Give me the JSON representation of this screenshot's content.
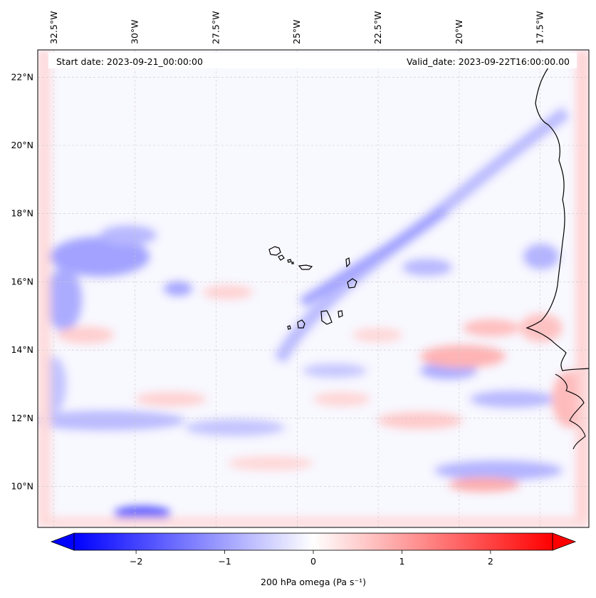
{
  "header": {
    "start_date": "Start date: 2023-09-21_00:00:00",
    "valid_date": "Valid_date: 2023-09-22T16:00:00.00"
  },
  "map": {
    "lon_range": [
      -33.0,
      -16.0
    ],
    "lat_range": [
      8.8,
      22.8
    ],
    "lon_ticks": [
      {
        "value": -32.5,
        "label": "32.5°W"
      },
      {
        "value": -30.0,
        "label": "30°W"
      },
      {
        "value": -27.5,
        "label": "27.5°W"
      },
      {
        "value": -25.0,
        "label": "25°W"
      },
      {
        "value": -22.5,
        "label": "22.5°W"
      },
      {
        "value": -20.0,
        "label": "20°W"
      },
      {
        "value": -17.5,
        "label": "17.5°W"
      }
    ],
    "lat_ticks": [
      {
        "value": 22,
        "label": "22°N"
      },
      {
        "value": 20,
        "label": "20°N"
      },
      {
        "value": 18,
        "label": "18°N"
      },
      {
        "value": 16,
        "label": "16°N"
      },
      {
        "value": 14,
        "label": "14°N"
      },
      {
        "value": 12,
        "label": "12°N"
      },
      {
        "value": 10,
        "label": "10°N"
      }
    ],
    "gridlines": true,
    "field": "200 hPa omega",
    "colormap": "bwr",
    "colors": {
      "negative": "#0000ff",
      "zero": "#ffffff",
      "positive": "#ff0000",
      "coast": "#000000"
    }
  },
  "colorbar": {
    "label": "200 hPa omega (Pa s⁻¹)",
    "range": [
      -2.7,
      2.7
    ],
    "extend": "both",
    "ticks": [
      {
        "value": -2,
        "label": "−2"
      },
      {
        "value": -1,
        "label": "−1"
      },
      {
        "value": 0,
        "label": "0"
      },
      {
        "value": 1,
        "label": "1"
      },
      {
        "value": 2,
        "label": "2"
      }
    ]
  }
}
